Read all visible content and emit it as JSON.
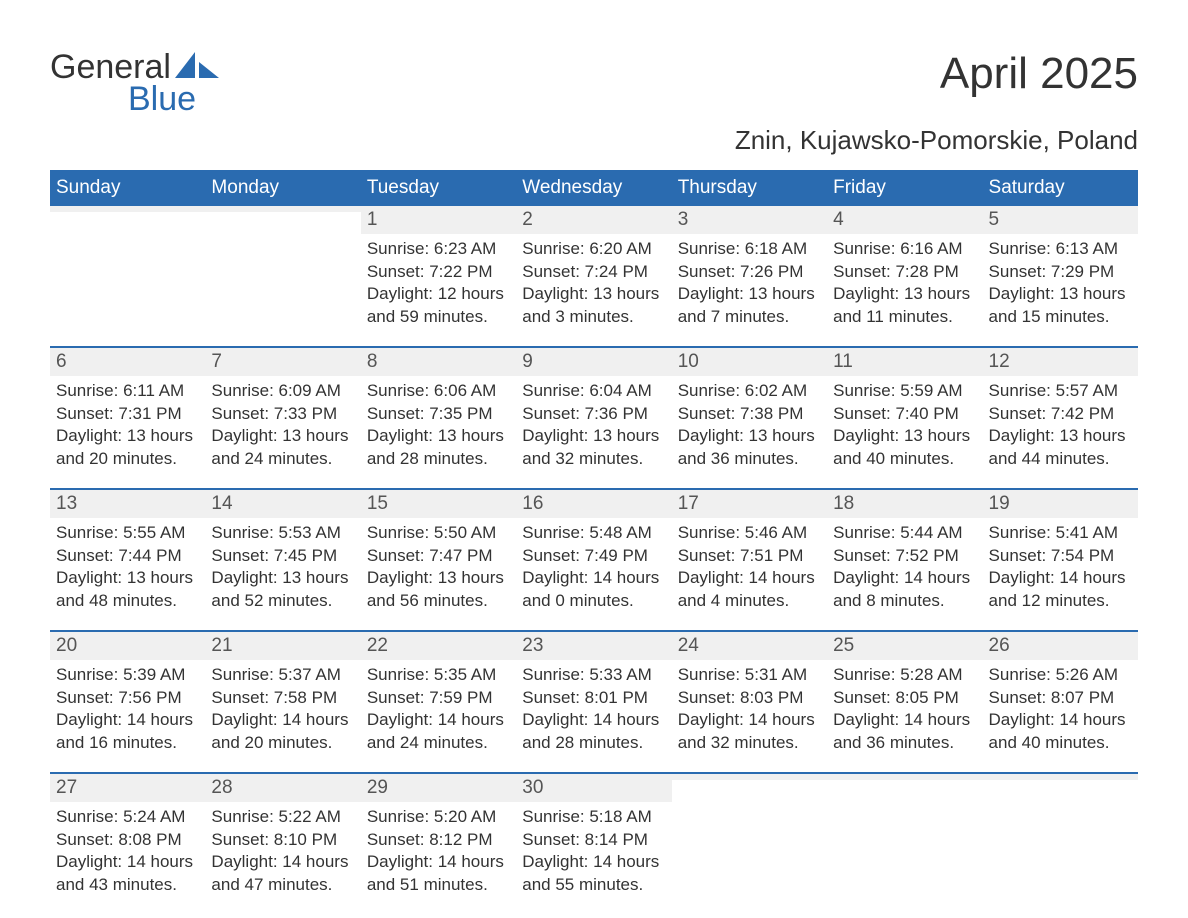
{
  "logo": {
    "line1": "General",
    "line2": "Blue",
    "sail_color": "#2a6bb0"
  },
  "title": "April 2025",
  "subtitle": "Znin, Kujawsko-Pomorskie, Poland",
  "colors": {
    "header_bg": "#2a6bb0",
    "header_text": "#ffffff",
    "daynum_bg": "#f0f0f0",
    "week_border": "#2a6bb0",
    "body_text": "#333333"
  },
  "weekdays": [
    "Sunday",
    "Monday",
    "Tuesday",
    "Wednesday",
    "Thursday",
    "Friday",
    "Saturday"
  ],
  "weeks": [
    [
      {
        "n": "",
        "sunrise": "",
        "sunset": "",
        "d1": "",
        "d2": ""
      },
      {
        "n": "",
        "sunrise": "",
        "sunset": "",
        "d1": "",
        "d2": ""
      },
      {
        "n": "1",
        "sunrise": "Sunrise: 6:23 AM",
        "sunset": "Sunset: 7:22 PM",
        "d1": "Daylight: 12 hours",
        "d2": "and 59 minutes."
      },
      {
        "n": "2",
        "sunrise": "Sunrise: 6:20 AM",
        "sunset": "Sunset: 7:24 PM",
        "d1": "Daylight: 13 hours",
        "d2": "and 3 minutes."
      },
      {
        "n": "3",
        "sunrise": "Sunrise: 6:18 AM",
        "sunset": "Sunset: 7:26 PM",
        "d1": "Daylight: 13 hours",
        "d2": "and 7 minutes."
      },
      {
        "n": "4",
        "sunrise": "Sunrise: 6:16 AM",
        "sunset": "Sunset: 7:28 PM",
        "d1": "Daylight: 13 hours",
        "d2": "and 11 minutes."
      },
      {
        "n": "5",
        "sunrise": "Sunrise: 6:13 AM",
        "sunset": "Sunset: 7:29 PM",
        "d1": "Daylight: 13 hours",
        "d2": "and 15 minutes."
      }
    ],
    [
      {
        "n": "6",
        "sunrise": "Sunrise: 6:11 AM",
        "sunset": "Sunset: 7:31 PM",
        "d1": "Daylight: 13 hours",
        "d2": "and 20 minutes."
      },
      {
        "n": "7",
        "sunrise": "Sunrise: 6:09 AM",
        "sunset": "Sunset: 7:33 PM",
        "d1": "Daylight: 13 hours",
        "d2": "and 24 minutes."
      },
      {
        "n": "8",
        "sunrise": "Sunrise: 6:06 AM",
        "sunset": "Sunset: 7:35 PM",
        "d1": "Daylight: 13 hours",
        "d2": "and 28 minutes."
      },
      {
        "n": "9",
        "sunrise": "Sunrise: 6:04 AM",
        "sunset": "Sunset: 7:36 PM",
        "d1": "Daylight: 13 hours",
        "d2": "and 32 minutes."
      },
      {
        "n": "10",
        "sunrise": "Sunrise: 6:02 AM",
        "sunset": "Sunset: 7:38 PM",
        "d1": "Daylight: 13 hours",
        "d2": "and 36 minutes."
      },
      {
        "n": "11",
        "sunrise": "Sunrise: 5:59 AM",
        "sunset": "Sunset: 7:40 PM",
        "d1": "Daylight: 13 hours",
        "d2": "and 40 minutes."
      },
      {
        "n": "12",
        "sunrise": "Sunrise: 5:57 AM",
        "sunset": "Sunset: 7:42 PM",
        "d1": "Daylight: 13 hours",
        "d2": "and 44 minutes."
      }
    ],
    [
      {
        "n": "13",
        "sunrise": "Sunrise: 5:55 AM",
        "sunset": "Sunset: 7:44 PM",
        "d1": "Daylight: 13 hours",
        "d2": "and 48 minutes."
      },
      {
        "n": "14",
        "sunrise": "Sunrise: 5:53 AM",
        "sunset": "Sunset: 7:45 PM",
        "d1": "Daylight: 13 hours",
        "d2": "and 52 minutes."
      },
      {
        "n": "15",
        "sunrise": "Sunrise: 5:50 AM",
        "sunset": "Sunset: 7:47 PM",
        "d1": "Daylight: 13 hours",
        "d2": "and 56 minutes."
      },
      {
        "n": "16",
        "sunrise": "Sunrise: 5:48 AM",
        "sunset": "Sunset: 7:49 PM",
        "d1": "Daylight: 14 hours",
        "d2": "and 0 minutes."
      },
      {
        "n": "17",
        "sunrise": "Sunrise: 5:46 AM",
        "sunset": "Sunset: 7:51 PM",
        "d1": "Daylight: 14 hours",
        "d2": "and 4 minutes."
      },
      {
        "n": "18",
        "sunrise": "Sunrise: 5:44 AM",
        "sunset": "Sunset: 7:52 PM",
        "d1": "Daylight: 14 hours",
        "d2": "and 8 minutes."
      },
      {
        "n": "19",
        "sunrise": "Sunrise: 5:41 AM",
        "sunset": "Sunset: 7:54 PM",
        "d1": "Daylight: 14 hours",
        "d2": "and 12 minutes."
      }
    ],
    [
      {
        "n": "20",
        "sunrise": "Sunrise: 5:39 AM",
        "sunset": "Sunset: 7:56 PM",
        "d1": "Daylight: 14 hours",
        "d2": "and 16 minutes."
      },
      {
        "n": "21",
        "sunrise": "Sunrise: 5:37 AM",
        "sunset": "Sunset: 7:58 PM",
        "d1": "Daylight: 14 hours",
        "d2": "and 20 minutes."
      },
      {
        "n": "22",
        "sunrise": "Sunrise: 5:35 AM",
        "sunset": "Sunset: 7:59 PM",
        "d1": "Daylight: 14 hours",
        "d2": "and 24 minutes."
      },
      {
        "n": "23",
        "sunrise": "Sunrise: 5:33 AM",
        "sunset": "Sunset: 8:01 PM",
        "d1": "Daylight: 14 hours",
        "d2": "and 28 minutes."
      },
      {
        "n": "24",
        "sunrise": "Sunrise: 5:31 AM",
        "sunset": "Sunset: 8:03 PM",
        "d1": "Daylight: 14 hours",
        "d2": "and 32 minutes."
      },
      {
        "n": "25",
        "sunrise": "Sunrise: 5:28 AM",
        "sunset": "Sunset: 8:05 PM",
        "d1": "Daylight: 14 hours",
        "d2": "and 36 minutes."
      },
      {
        "n": "26",
        "sunrise": "Sunrise: 5:26 AM",
        "sunset": "Sunset: 8:07 PM",
        "d1": "Daylight: 14 hours",
        "d2": "and 40 minutes."
      }
    ],
    [
      {
        "n": "27",
        "sunrise": "Sunrise: 5:24 AM",
        "sunset": "Sunset: 8:08 PM",
        "d1": "Daylight: 14 hours",
        "d2": "and 43 minutes."
      },
      {
        "n": "28",
        "sunrise": "Sunrise: 5:22 AM",
        "sunset": "Sunset: 8:10 PM",
        "d1": "Daylight: 14 hours",
        "d2": "and 47 minutes."
      },
      {
        "n": "29",
        "sunrise": "Sunrise: 5:20 AM",
        "sunset": "Sunset: 8:12 PM",
        "d1": "Daylight: 14 hours",
        "d2": "and 51 minutes."
      },
      {
        "n": "30",
        "sunrise": "Sunrise: 5:18 AM",
        "sunset": "Sunset: 8:14 PM",
        "d1": "Daylight: 14 hours",
        "d2": "and 55 minutes."
      },
      {
        "n": "",
        "sunrise": "",
        "sunset": "",
        "d1": "",
        "d2": ""
      },
      {
        "n": "",
        "sunrise": "",
        "sunset": "",
        "d1": "",
        "d2": ""
      },
      {
        "n": "",
        "sunrise": "",
        "sunset": "",
        "d1": "",
        "d2": ""
      }
    ]
  ]
}
